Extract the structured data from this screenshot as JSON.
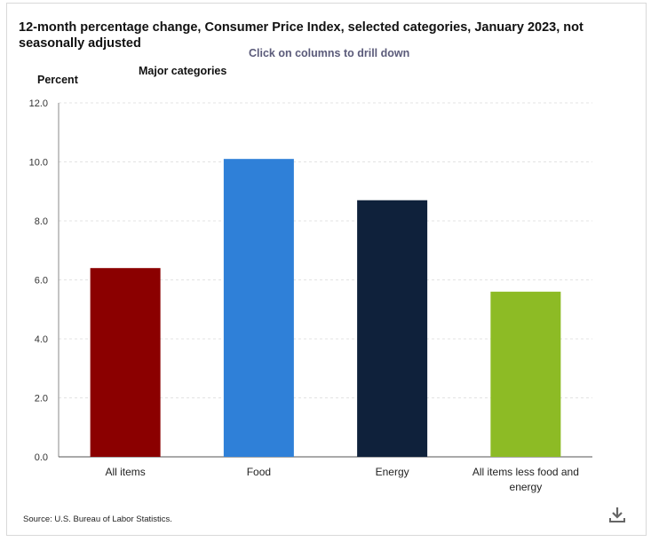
{
  "header": {
    "title": "12-month percentage change, Consumer Price Index, selected categories, January 2023, not seasonally adjusted",
    "subtitle": "Click on columns to drill down",
    "group_label": "Major categories"
  },
  "footer": {
    "source": "Source: U.S. Bureau of Labor Statistics."
  },
  "icons": {
    "download": "download-icon"
  },
  "chart_data": {
    "type": "bar",
    "title": "12-month percentage change, Consumer Price Index, selected categories, January 2023, not seasonally adjusted",
    "ylabel": "Percent",
    "xlabel": "",
    "categories": [
      "All items",
      "Food",
      "Energy",
      "All items less food and energy"
    ],
    "values": [
      6.4,
      10.1,
      8.7,
      5.6
    ],
    "colors": [
      "#8b0000",
      "#2f80d8",
      "#0f213b",
      "#8dbb25"
    ],
    "ylim": [
      0,
      12
    ],
    "yticks": [
      "0.0",
      "2.0",
      "4.0",
      "6.0",
      "8.0",
      "10.0",
      "12.0"
    ],
    "grid": true,
    "legend": "none"
  }
}
